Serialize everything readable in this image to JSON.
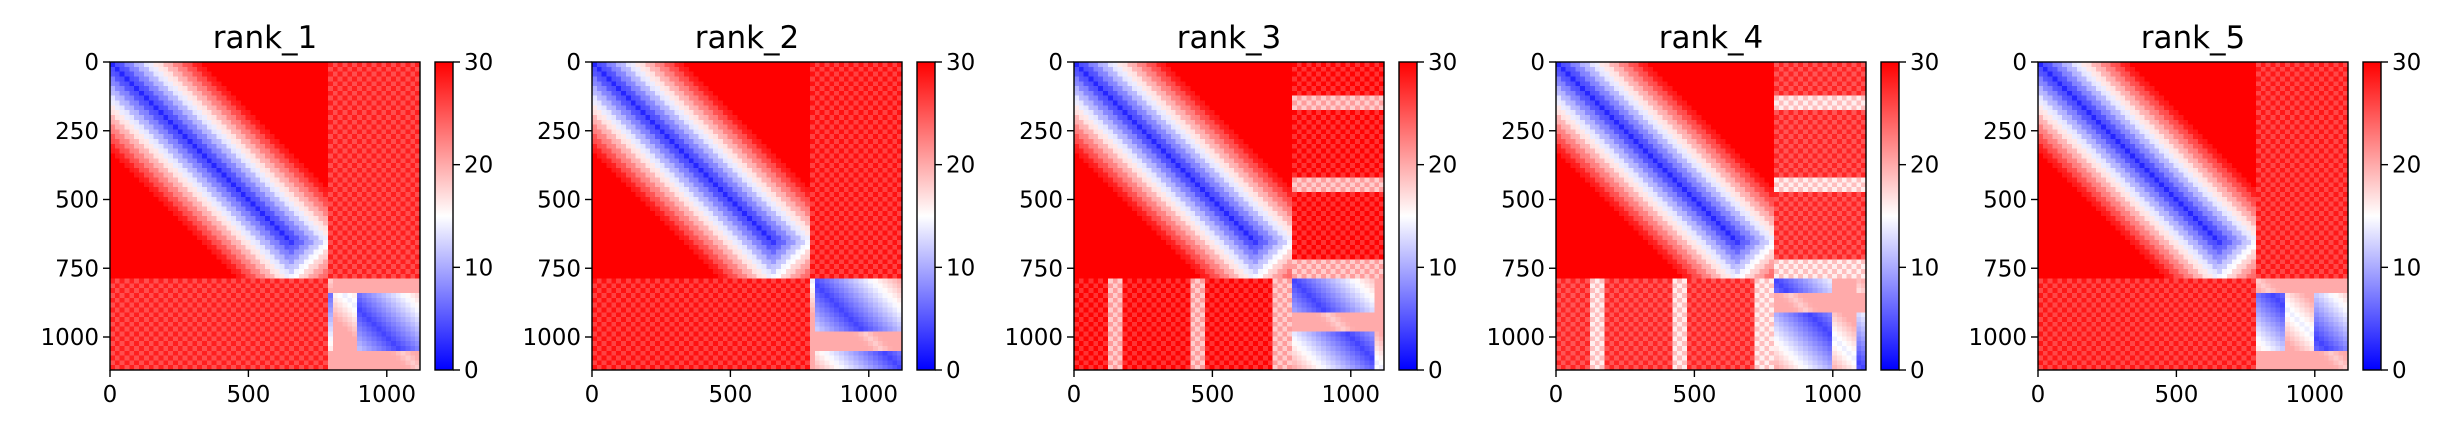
{
  "chart_data": [
    {
      "type": "heatmap",
      "title": "rank_1",
      "matrix_size": 1120,
      "block_boundary": 785,
      "xticks": [
        0,
        500,
        1000
      ],
      "yticks": [
        0,
        250,
        500,
        750,
        1000
      ],
      "colorbar": {
        "min": 0,
        "max": 30,
        "ticks": [
          0,
          10,
          20,
          30
        ],
        "cmap": "bwr"
      }
    },
    {
      "type": "heatmap",
      "title": "rank_2",
      "matrix_size": 1120,
      "block_boundary": 785,
      "xticks": [
        0,
        500,
        1000
      ],
      "yticks": [
        0,
        250,
        500,
        750,
        1000
      ],
      "colorbar": {
        "min": 0,
        "max": 30,
        "ticks": [
          0,
          10,
          20,
          30
        ],
        "cmap": "bwr"
      }
    },
    {
      "type": "heatmap",
      "title": "rank_3",
      "matrix_size": 1120,
      "block_boundary": 785,
      "xticks": [
        0,
        500,
        1000
      ],
      "yticks": [
        0,
        250,
        500,
        750,
        1000
      ],
      "colorbar": {
        "min": 0,
        "max": 30,
        "ticks": [
          0,
          10,
          20,
          30
        ],
        "cmap": "bwr"
      }
    },
    {
      "type": "heatmap",
      "title": "rank_4",
      "matrix_size": 1120,
      "block_boundary": 785,
      "xticks": [
        0,
        500,
        1000
      ],
      "yticks": [
        0,
        250,
        500,
        750,
        1000
      ],
      "colorbar": {
        "min": 0,
        "max": 30,
        "ticks": [
          0,
          10,
          20,
          30
        ],
        "cmap": "bwr"
      }
    },
    {
      "type": "heatmap",
      "title": "rank_5",
      "matrix_size": 1120,
      "block_boundary": 785,
      "xticks": [
        0,
        500,
        1000
      ],
      "yticks": [
        0,
        250,
        500,
        750,
        1000
      ],
      "colorbar": {
        "min": 0,
        "max": 30,
        "ticks": [
          0,
          10,
          20,
          30
        ],
        "cmap": "bwr"
      }
    }
  ]
}
